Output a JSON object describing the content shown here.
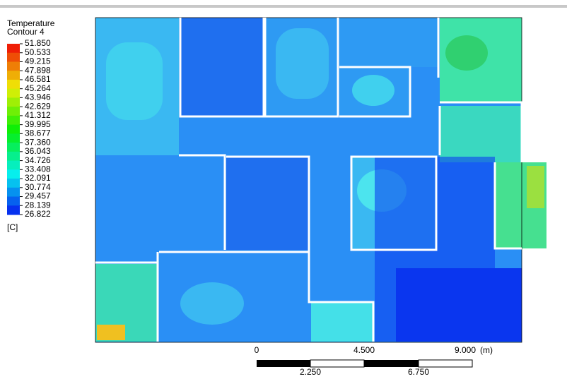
{
  "legend": {
    "title": "Temperature",
    "subtitle": "Contour 4",
    "levels": [
      "51.850",
      "50.533",
      "49.215",
      "47.898",
      "46.581",
      "45.264",
      "43.946",
      "42.629",
      "41.312",
      "39.995",
      "38.677",
      "37.360",
      "36.043",
      "34.726",
      "33.408",
      "32.091",
      "30.774",
      "29.457",
      "28.139",
      "26.822"
    ],
    "unit": "[C]"
  },
  "scale_bar": {
    "top_labels": [
      "0",
      "4.500",
      "9.000"
    ],
    "unit": "(m)",
    "bottom_labels": [
      "2.250",
      "6.750"
    ]
  }
}
